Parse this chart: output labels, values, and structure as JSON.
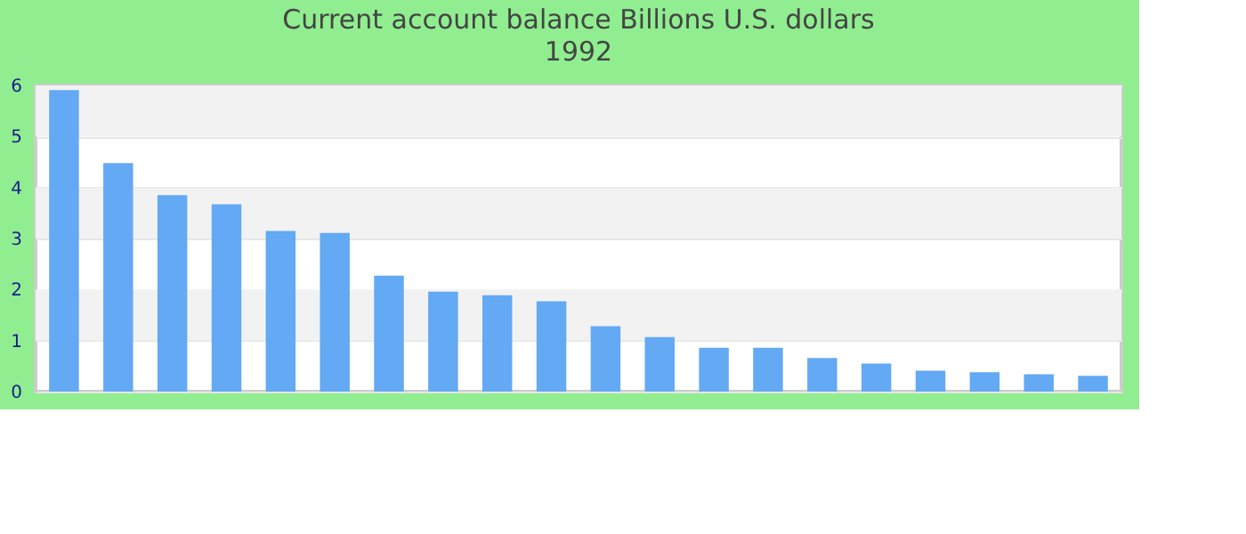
{
  "chart_data": {
    "type": "bar",
    "title": "Current account balance Billions U.S. dollars",
    "subtitle": "1992",
    "categories": [
      null,
      null,
      null,
      null,
      null,
      null,
      null,
      null,
      null,
      null,
      null,
      null,
      null,
      null,
      null,
      null,
      null,
      null,
      null,
      null
    ],
    "values": [
      5.91,
      4.48,
      3.85,
      3.67,
      3.15,
      3.11,
      2.27,
      1.96,
      1.89,
      1.77,
      1.28,
      1.07,
      0.86,
      0.86,
      0.66,
      0.55,
      0.41,
      0.38,
      0.34,
      0.31
    ],
    "color": "#63a9f4",
    "ylim": [
      0,
      6
    ],
    "yticks": [
      0,
      1,
      2,
      3,
      4,
      5,
      6
    ],
    "grid": "y",
    "tick_labels": "y"
  }
}
